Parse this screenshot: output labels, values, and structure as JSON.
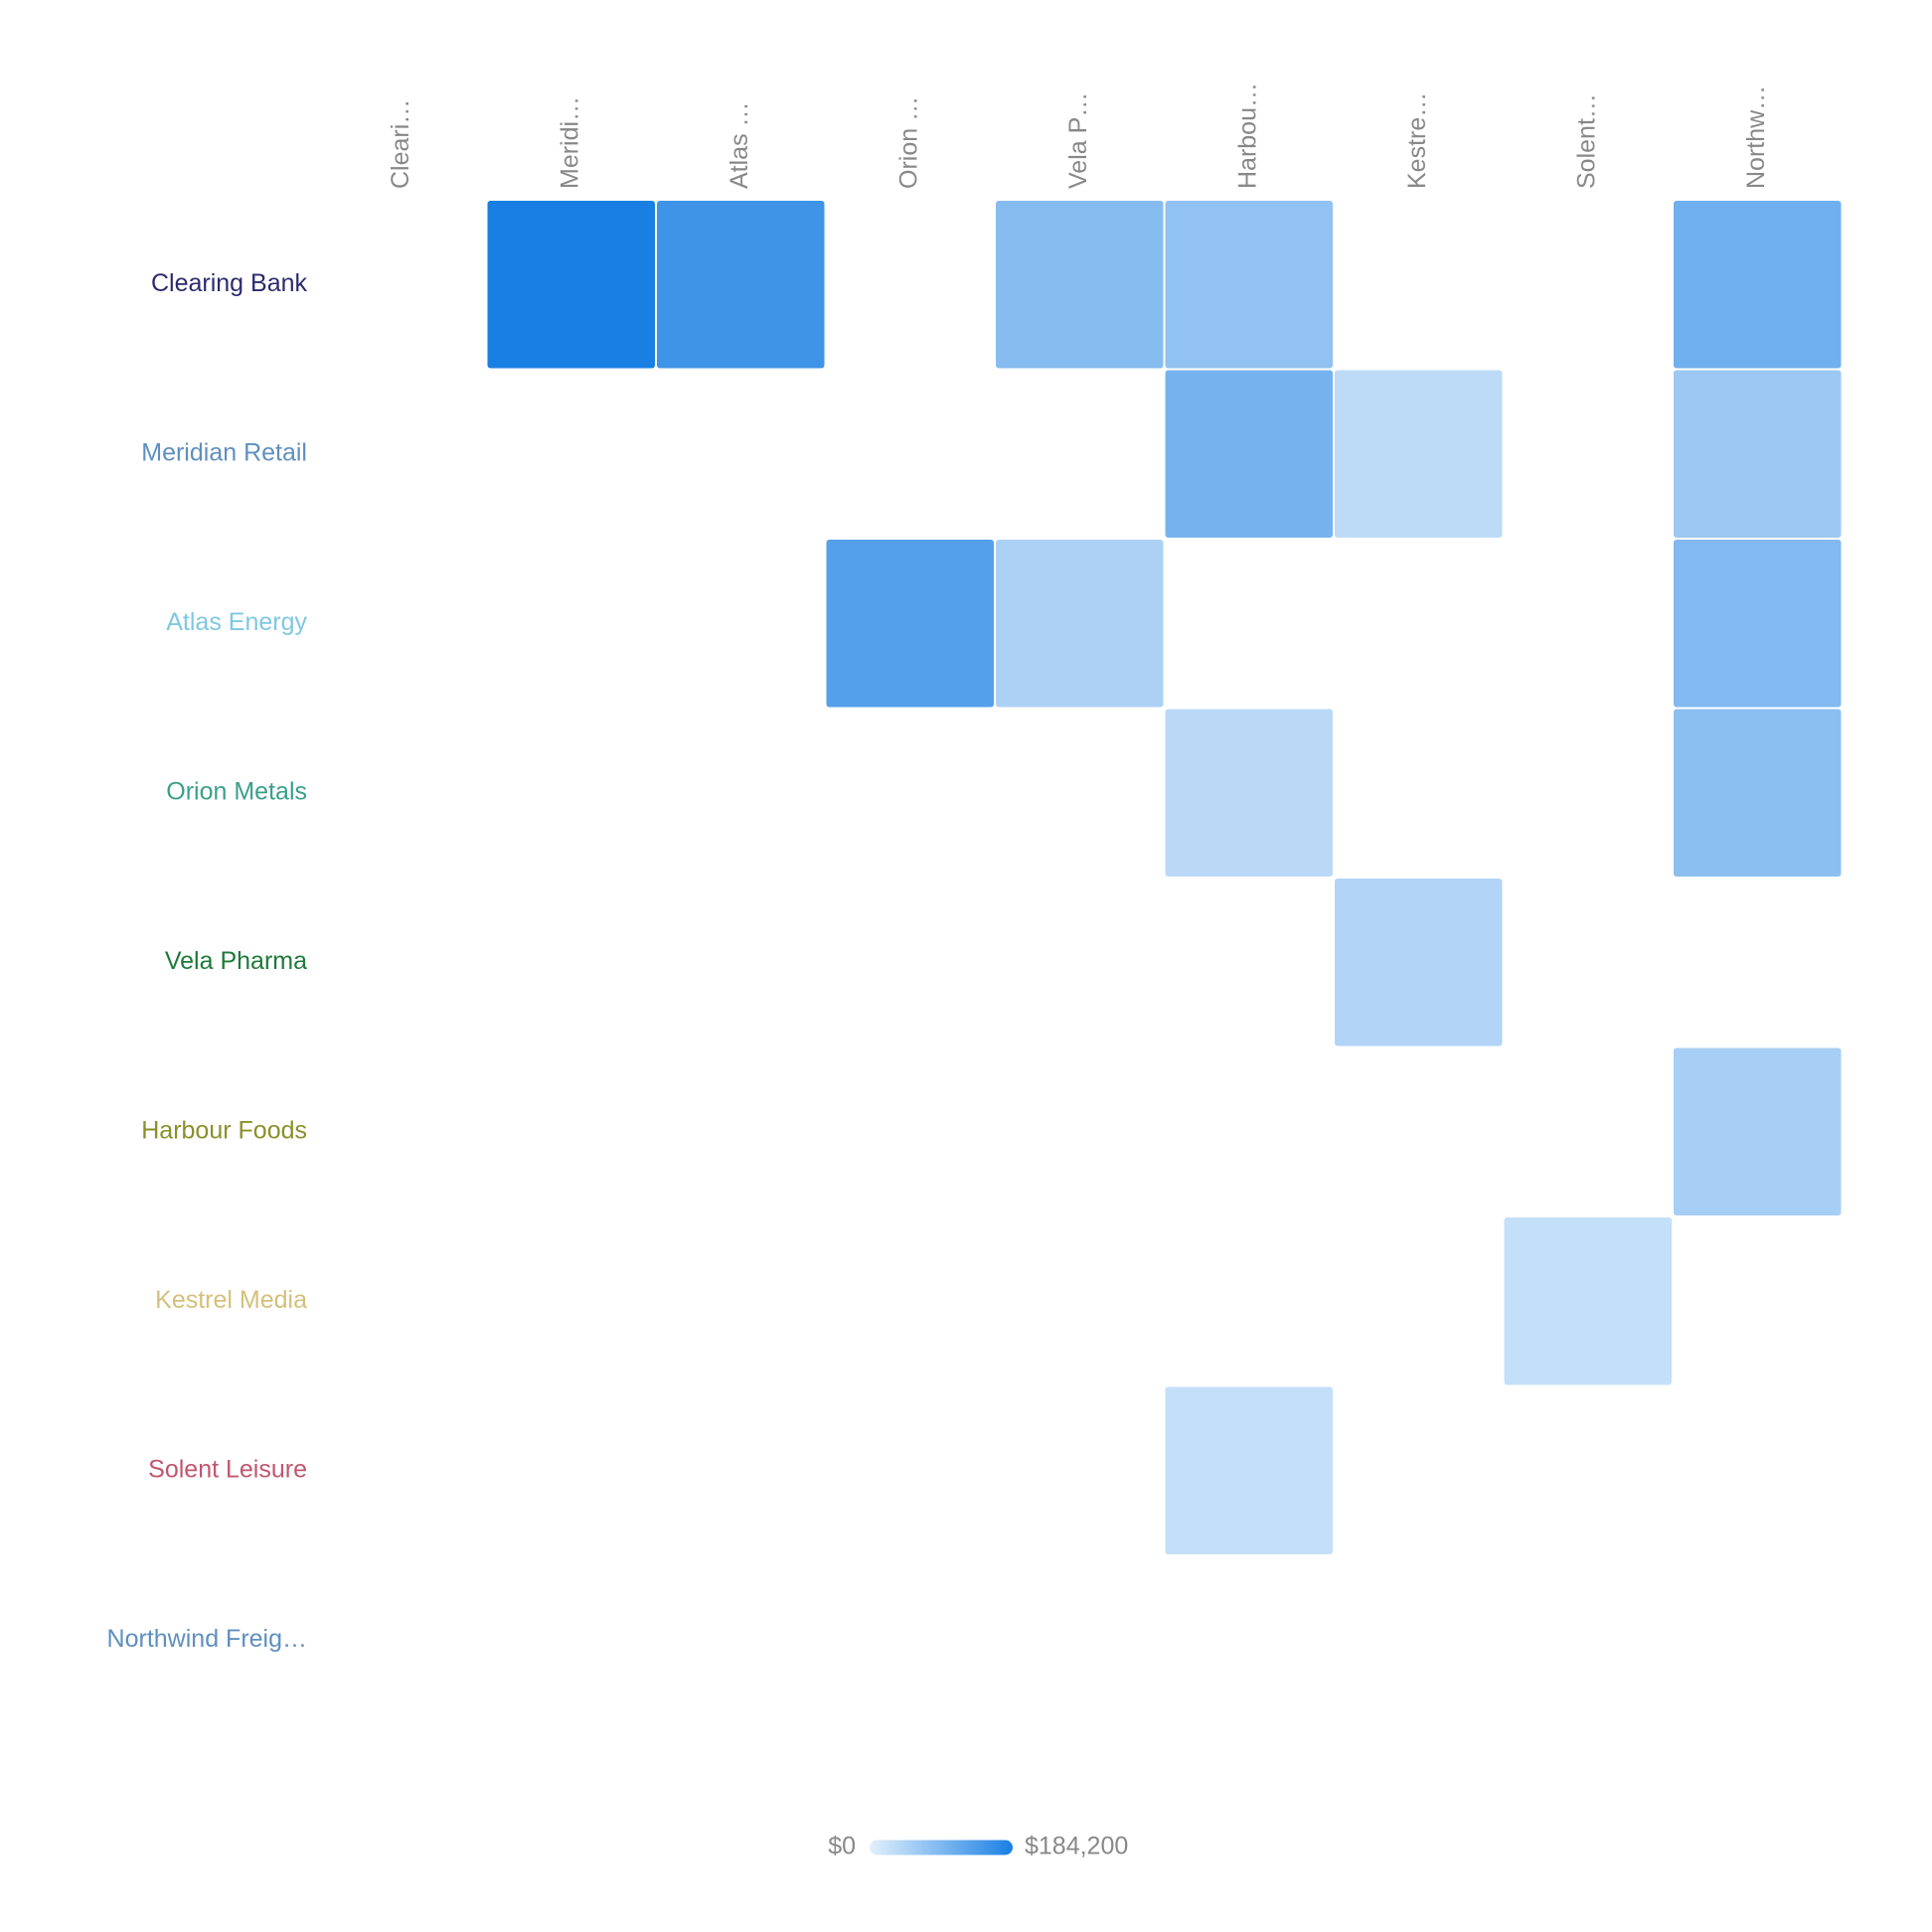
{
  "chart_data": {
    "type": "heatmap",
    "rows": [
      "Clearing Bank",
      "Meridian Retail",
      "Atlas Energy",
      "Orion Metals",
      "Vela Pharma",
      "Harbour Foods",
      "Kestrel Media",
      "Solent Leisure",
      "Northwind Freig…"
    ],
    "row_colors": [
      "#2d2a6e",
      "#5f8fc0",
      "#7ec8e3",
      "#3aa08a",
      "#1e7a3a",
      "#8b8f2a",
      "#d4c07a",
      "#c0566e",
      "#5f8fc0"
    ],
    "columns": [
      "Cleari…",
      "Meridi…",
      "Atlas …",
      "Orion …",
      "Vela P…",
      "Harbou…",
      "Kestre…",
      "Solent…",
      "Northw…"
    ],
    "values": [
      [
        null,
        184200,
        150000,
        null,
        85000,
        75000,
        null,
        null,
        105000
      ],
      [
        null,
        null,
        null,
        null,
        null,
        100000,
        35000,
        null,
        65000
      ],
      [
        null,
        null,
        null,
        130000,
        50000,
        null,
        null,
        null,
        90000
      ],
      [
        null,
        null,
        null,
        null,
        null,
        38000,
        null,
        null,
        80000
      ],
      [
        null,
        null,
        null,
        null,
        null,
        null,
        45000,
        null,
        null
      ],
      [
        null,
        null,
        null,
        null,
        null,
        null,
        null,
        null,
        55000
      ],
      [
        null,
        null,
        null,
        null,
        null,
        null,
        null,
        28000,
        null
      ],
      [
        null,
        null,
        null,
        null,
        null,
        28000,
        null,
        null,
        null
      ],
      [
        null,
        null,
        null,
        null,
        null,
        null,
        null,
        null,
        null
      ]
    ],
    "zlim": [
      0,
      184200
    ],
    "zticks": [
      {
        "value": 0,
        "label": "$0"
      },
      {
        "value": 184200,
        "label": "$184,200"
      }
    ],
    "colors": [
      "#e3f0fc",
      "#1a7fe3"
    ]
  }
}
